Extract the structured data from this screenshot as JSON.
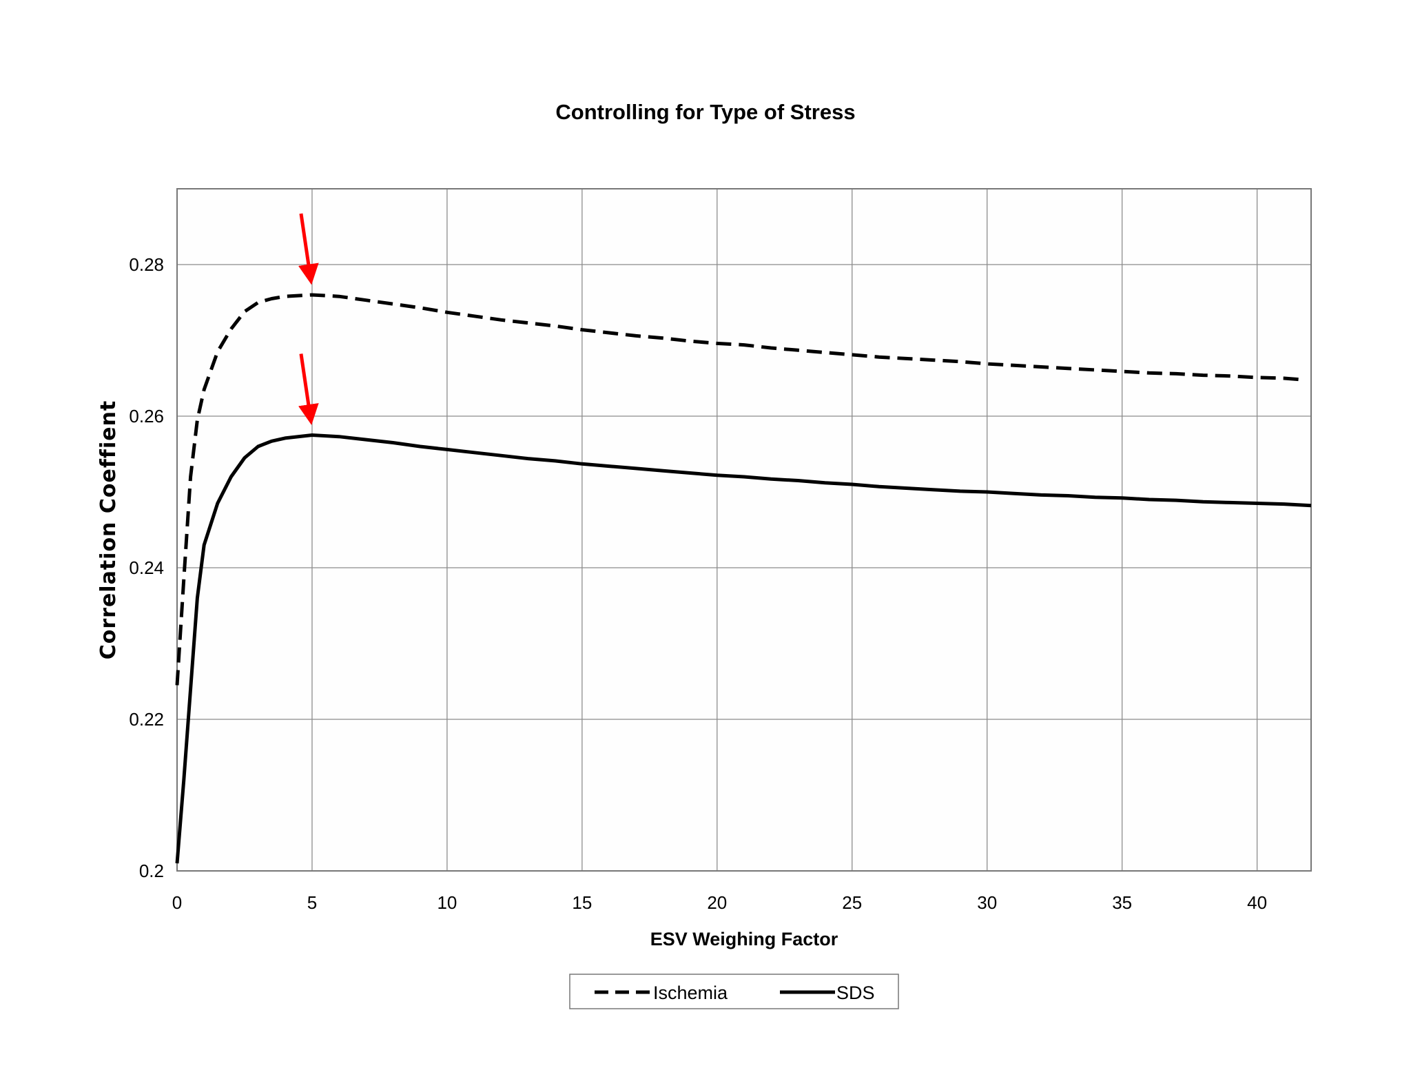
{
  "chart_data": {
    "type": "line",
    "title": "Controlling for Type of Stress",
    "xlabel": "ESV Weighing Factor",
    "ylabel": "Correlation Coeffient",
    "xlim": [
      0,
      42
    ],
    "ylim": [
      0.2,
      0.29
    ],
    "x_ticks": [
      "0",
      "5",
      "10",
      "15",
      "20",
      "25",
      "30",
      "35",
      "40"
    ],
    "y_ticks": [
      "0.2",
      "0.22",
      "0.24",
      "0.26",
      "0.28"
    ],
    "grid": true,
    "legend_position": "bottom-center",
    "series": [
      {
        "name": "Ischemia",
        "style": "dashed",
        "color": "#000000",
        "x": [
          0,
          0.25,
          0.5,
          0.75,
          1,
          1.5,
          2,
          2.5,
          3,
          3.5,
          4,
          5,
          6,
          7,
          8,
          9,
          10,
          11,
          12,
          13,
          14,
          15,
          16,
          17,
          18,
          19,
          20,
          21,
          22,
          23,
          24,
          25,
          26,
          27,
          28,
          29,
          30,
          31,
          32,
          33,
          34,
          35,
          36,
          37,
          38,
          39,
          40,
          41,
          41.7
        ],
        "y": [
          0.2245,
          0.2385,
          0.252,
          0.2595,
          0.2635,
          0.2685,
          0.2715,
          0.2738,
          0.275,
          0.2755,
          0.2758,
          0.276,
          0.2758,
          0.2753,
          0.2748,
          0.2743,
          0.2737,
          0.2732,
          0.2727,
          0.2723,
          0.2719,
          0.2714,
          0.271,
          0.2706,
          0.2703,
          0.2699,
          0.2696,
          0.2694,
          0.269,
          0.2687,
          0.2684,
          0.2681,
          0.2678,
          0.2676,
          0.2674,
          0.2672,
          0.2669,
          0.2667,
          0.2665,
          0.2663,
          0.2661,
          0.2659,
          0.2657,
          0.2656,
          0.2654,
          0.2653,
          0.2651,
          0.265,
          0.2648
        ]
      },
      {
        "name": "SDS",
        "style": "solid",
        "color": "#000000",
        "x": [
          0,
          0.25,
          0.5,
          0.75,
          1,
          1.5,
          2,
          2.5,
          3,
          3.5,
          4,
          5,
          6,
          7,
          8,
          9,
          10,
          11,
          12,
          13,
          14,
          15,
          16,
          17,
          18,
          19,
          20,
          21,
          22,
          23,
          24,
          25,
          26,
          27,
          28,
          29,
          30,
          31,
          32,
          33,
          34,
          35,
          36,
          37,
          38,
          39,
          40,
          41,
          42
        ],
        "y": [
          0.201,
          0.212,
          0.224,
          0.236,
          0.243,
          0.2485,
          0.252,
          0.2545,
          0.256,
          0.2567,
          0.2571,
          0.2575,
          0.2573,
          0.2569,
          0.2565,
          0.256,
          0.2556,
          0.2552,
          0.2548,
          0.2544,
          0.2541,
          0.2537,
          0.2534,
          0.2531,
          0.2528,
          0.2525,
          0.2522,
          0.252,
          0.2517,
          0.2515,
          0.2512,
          0.251,
          0.2507,
          0.2505,
          0.2503,
          0.2501,
          0.25,
          0.2498,
          0.2496,
          0.2495,
          0.2493,
          0.2492,
          0.249,
          0.2489,
          0.2487,
          0.2486,
          0.2485,
          0.2484,
          0.2482
        ]
      }
    ],
    "annotations": [
      {
        "type": "arrow",
        "color": "#ff0000",
        "target_series": "Ischemia",
        "x": 5,
        "y": 0.276
      },
      {
        "type": "arrow",
        "color": "#ff0000",
        "target_series": "SDS",
        "x": 5,
        "y": 0.2575
      }
    ]
  }
}
